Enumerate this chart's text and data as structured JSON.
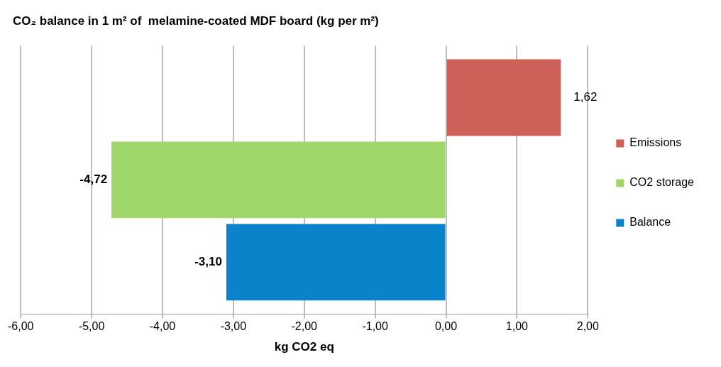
{
  "chart_data": {
    "type": "bar",
    "orientation": "horizontal",
    "title": "CO₂ balance in 1 m² of  melamine-coated MDF board (kg per m²)",
    "xlabel": "kg CO2 eq",
    "categories": [
      null
    ],
    "series": [
      {
        "name": "Emissions",
        "color": "#cd6158",
        "values": [
          1.62
        ],
        "value_labels": [
          "1,62"
        ]
      },
      {
        "name": "CO2 storage",
        "color": "#a0d76a",
        "values": [
          -4.72
        ],
        "value_labels": [
          "-4,72"
        ]
      },
      {
        "name": "Balance",
        "color": "#0a82cc",
        "values": [
          -3.1
        ],
        "value_labels": [
          "-3,10"
        ]
      }
    ],
    "xlim": [
      -6,
      2
    ],
    "xticks": [
      {
        "value": -6,
        "label": "-6,00"
      },
      {
        "value": -5,
        "label": "-5,00"
      },
      {
        "value": -4,
        "label": "-4,00"
      },
      {
        "value": -3,
        "label": "-3,00"
      },
      {
        "value": -2,
        "label": "-2,00"
      },
      {
        "value": -1,
        "label": "-1,00"
      },
      {
        "value": 0,
        "label": "0,00"
      },
      {
        "value": 1,
        "label": "1,00"
      },
      {
        "value": 2,
        "label": "2,00"
      }
    ],
    "grid": "x",
    "legend": "right",
    "tick_labels": "x"
  }
}
